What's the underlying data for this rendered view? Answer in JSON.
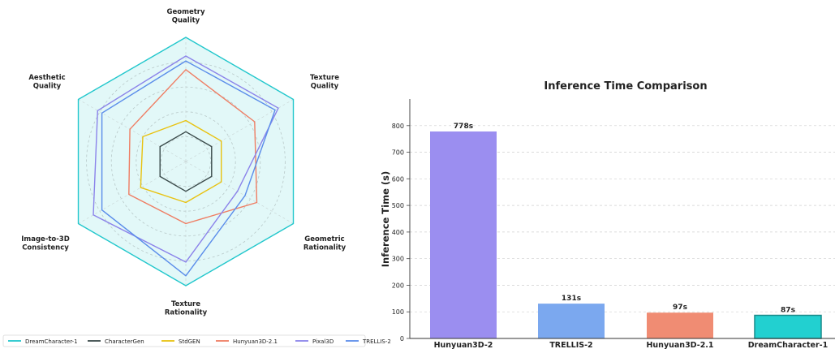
{
  "chart_data": [
    {
      "type": "radar",
      "axes": [
        {
          "lines": [
            "Geometry",
            "Quality"
          ]
        },
        {
          "lines": [
            "Texture",
            "Quality"
          ]
        },
        {
          "lines": [
            "Geometric",
            "Rationality"
          ]
        },
        {
          "lines": [
            "Texture",
            "Rationality"
          ]
        },
        {
          "lines": [
            "Image-to-3D",
            "Consistency"
          ]
        },
        {
          "lines": [
            "Aesthetic",
            "Quality"
          ]
        }
      ],
      "range": [
        0,
        1
      ],
      "grid_rings": [
        0.2,
        0.4,
        0.6,
        0.8
      ],
      "series": [
        {
          "name": "DreamCharacter-1",
          "values": [
            1.0,
            1.0,
            1.0,
            1.0,
            1.0,
            1.0
          ],
          "color": "#22c7cc",
          "fill": true
        },
        {
          "name": "CharacterGen",
          "values": [
            0.24,
            0.24,
            0.24,
            0.24,
            0.24,
            0.24
          ],
          "color": "#3a4a4a",
          "fill": false
        },
        {
          "name": "StdGEN",
          "values": [
            0.33,
            0.33,
            0.33,
            0.33,
            0.42,
            0.4
          ],
          "color": "#e8c210",
          "fill": false
        },
        {
          "name": "Hunyuan3D-2.1",
          "values": [
            0.74,
            0.64,
            0.66,
            0.5,
            0.53,
            0.52
          ],
          "color": "#ef7d63",
          "fill": false
        },
        {
          "name": "Pixal3D",
          "values": [
            0.85,
            0.86,
            0.48,
            0.81,
            0.86,
            0.82
          ],
          "color": "#8b83ea",
          "fill": false
        },
        {
          "name": "TRELLIS-2",
          "values": [
            0.81,
            0.83,
            0.55,
            0.92,
            0.78,
            0.78
          ],
          "color": "#5b8dea",
          "fill": false
        }
      ],
      "legend": "bottom"
    },
    {
      "type": "bar",
      "title": "Inference Time Comparison",
      "ylabel": "Inference Time (s)",
      "categories": [
        "Hunyuan3D-2",
        "TRELLIS-2",
        "Hunyuan3D-2.1",
        "DreamCharacter-1"
      ],
      "values": [
        778,
        131,
        97,
        87
      ],
      "data_labels": [
        "778s",
        "131s",
        "97s",
        "87s"
      ],
      "colors": [
        "#9b8ef0",
        "#7ba8ef",
        "#f08c73",
        "#22d0d0"
      ],
      "highlight_index": 3,
      "yticks": [
        0,
        100,
        200,
        300,
        400,
        500,
        600,
        700,
        800
      ],
      "ylim": [
        0,
        900
      ],
      "grid": "horizontal-dashed"
    }
  ]
}
